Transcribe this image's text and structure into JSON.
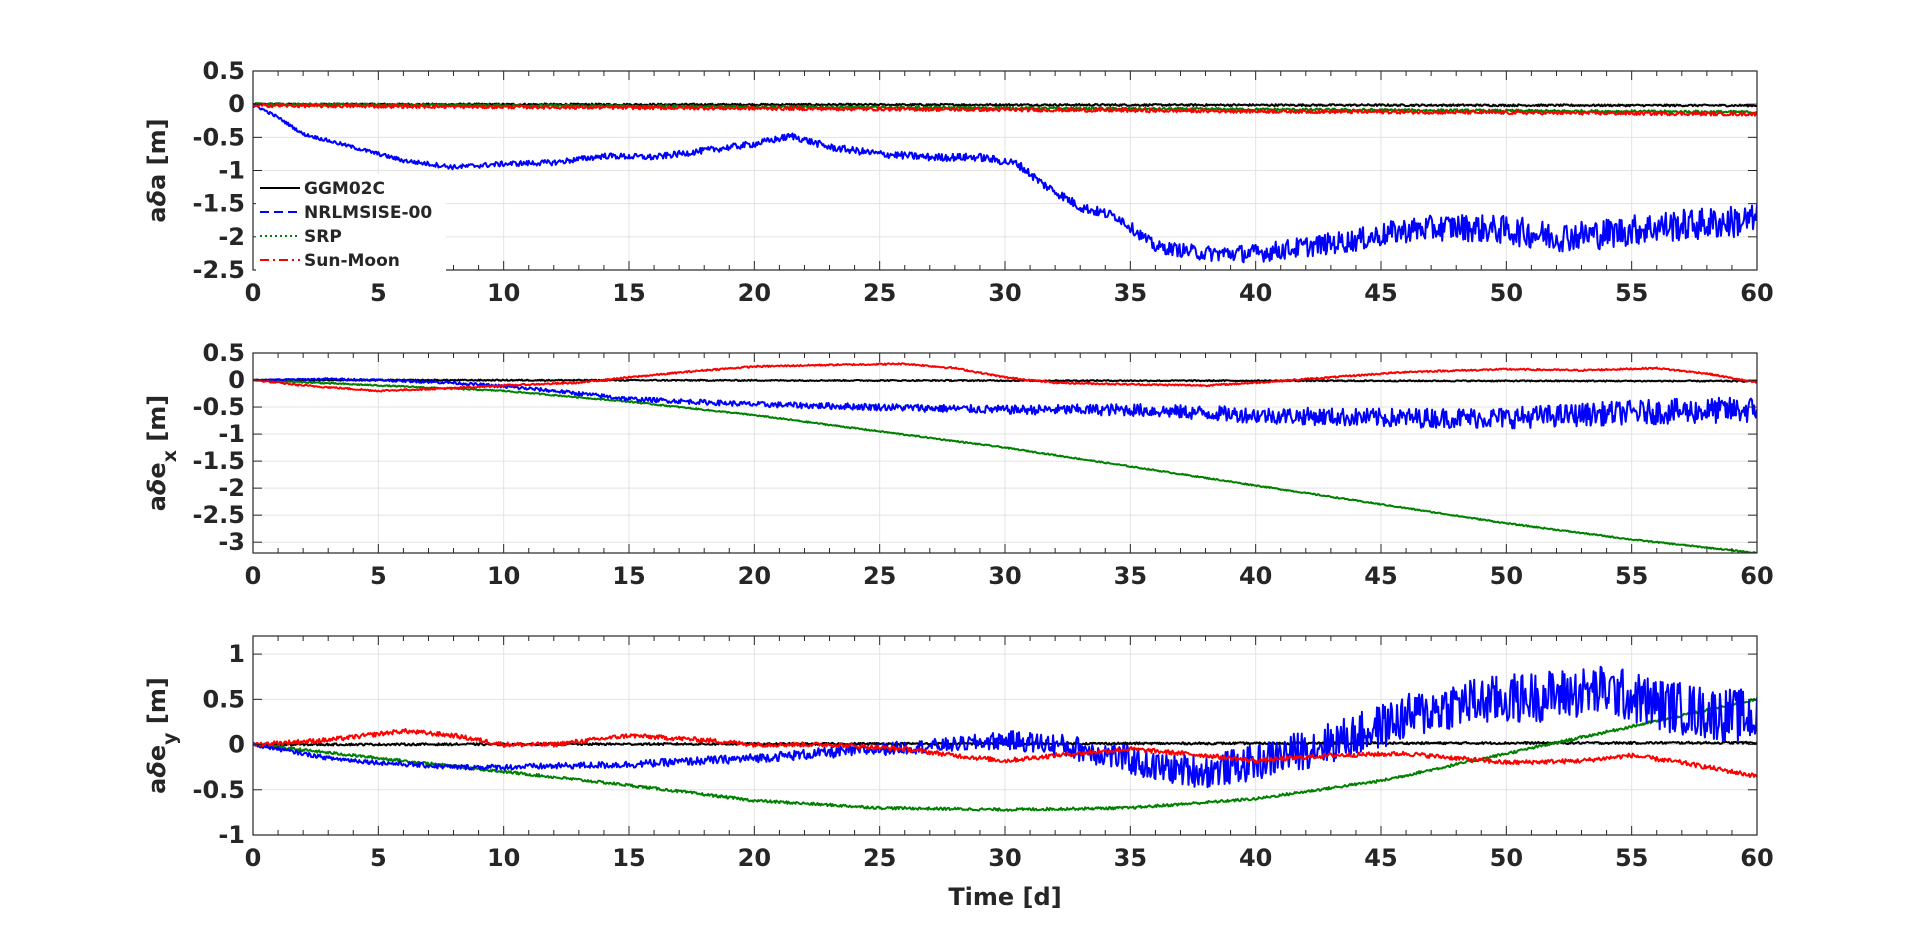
{
  "chart_data": [
    {
      "type": "line",
      "ylabel_parts": [
        {
          "text": "a",
          "style": "normal"
        },
        {
          "text": "δ",
          "style": "italic"
        },
        {
          "text": "a",
          "style": "normal"
        },
        {
          "text": " [m]",
          "style": "normal"
        }
      ],
      "xlabel": "",
      "xlim": [
        0,
        60
      ],
      "ylim": [
        -2.5,
        0.5
      ],
      "xticks": [
        0,
        5,
        10,
        15,
        20,
        25,
        30,
        35,
        40,
        45,
        50,
        55,
        60
      ],
      "yticks": [
        0.5,
        0,
        -0.5,
        -1,
        -1.5,
        -2,
        -2.5
      ],
      "ytick_labels": [
        "0.5",
        "0",
        "-0.5",
        "-1",
        "-1.5",
        "-2",
        "-2.5"
      ],
      "grid": true,
      "legend": {
        "placement": "bottom-left",
        "entries": [
          {
            "name": "GGM02C",
            "color": "#000000",
            "dash": "solid"
          },
          {
            "name": "NRLMSISE-00",
            "color": "#0000ff",
            "dash": "dashed"
          },
          {
            "name": "SRP",
            "color": "#008000",
            "dash": "dotted"
          },
          {
            "name": "Sun-Moon",
            "color": "#ff0000",
            "dash": "dashdot"
          }
        ]
      },
      "series": [
        {
          "color": "#000000",
          "noise": 0.015,
          "x": [
            0,
            60
          ],
          "y": [
            0,
            -0.02
          ]
        },
        {
          "color": "#008000",
          "noise": 0.02,
          "x": [
            0,
            60
          ],
          "y": [
            0,
            -0.12
          ]
        },
        {
          "color": "#0000ff",
          "x": [
            0,
            1,
            2,
            4,
            6,
            8,
            10,
            12,
            14,
            16,
            18,
            20,
            21.5,
            23,
            25,
            27,
            29,
            30.5,
            31.5,
            33,
            34.5,
            36,
            38,
            40,
            42,
            44,
            46,
            48,
            50,
            52,
            54,
            56,
            58,
            60
          ],
          "y": [
            0,
            -0.2,
            -0.45,
            -0.65,
            -0.85,
            -0.95,
            -0.9,
            -0.88,
            -0.78,
            -0.8,
            -0.7,
            -0.6,
            -0.48,
            -0.65,
            -0.75,
            -0.8,
            -0.8,
            -0.9,
            -1.2,
            -1.55,
            -1.7,
            -2.15,
            -2.25,
            -2.25,
            -2.15,
            -2.05,
            -1.9,
            -1.85,
            -1.9,
            -2.0,
            -1.95,
            -1.85,
            -1.8,
            -1.75
          ],
          "noise_x": [
            0,
            10,
            20,
            30,
            35,
            40,
            45,
            50,
            60
          ],
          "noise_y": [
            0.02,
            0.04,
            0.05,
            0.06,
            0.08,
            0.14,
            0.18,
            0.22,
            0.25
          ]
        },
        {
          "color": "#ff0000",
          "noise": 0.025,
          "x": [
            0,
            60
          ],
          "y": [
            -0.02,
            -0.15
          ]
        }
      ]
    },
    {
      "type": "line",
      "ylabel_parts": [
        {
          "text": "a",
          "style": "normal"
        },
        {
          "text": "δ",
          "style": "italic"
        },
        {
          "text": "e",
          "style": "normal"
        },
        {
          "text": "x",
          "style": "sub"
        },
        {
          "text": " [m]",
          "style": "normal"
        }
      ],
      "xlabel": "",
      "xlim": [
        0,
        60
      ],
      "ylim": [
        -3.2,
        0.5
      ],
      "xticks": [
        0,
        5,
        10,
        15,
        20,
        25,
        30,
        35,
        40,
        45,
        50,
        55,
        60
      ],
      "yticks": [
        0.5,
        0,
        -0.5,
        -1,
        -1.5,
        -2,
        -2.5,
        -3
      ],
      "ytick_labels": [
        "0.5",
        "0",
        "-0.5",
        "-1",
        "-1.5",
        "-2",
        "-2.5",
        "-3"
      ],
      "grid": true,
      "series": [
        {
          "color": "#000000",
          "noise": 0.012,
          "x": [
            0,
            60
          ],
          "y": [
            0,
            -0.02
          ]
        },
        {
          "color": "#008000",
          "noise": 0.012,
          "x": [
            0,
            5,
            10,
            15,
            20,
            25,
            30,
            35,
            40,
            45,
            50,
            55,
            60
          ],
          "y": [
            0,
            -0.1,
            -0.2,
            -0.4,
            -0.65,
            -0.95,
            -1.25,
            -1.6,
            -1.95,
            -2.3,
            -2.65,
            -2.95,
            -3.2
          ]
        },
        {
          "color": "#0000ff",
          "x": [
            0,
            3,
            5,
            8,
            10,
            12,
            15,
            20,
            25,
            30,
            35,
            40,
            45,
            50,
            55,
            60
          ],
          "y": [
            0,
            0.02,
            0.0,
            -0.05,
            -0.12,
            -0.2,
            -0.35,
            -0.45,
            -0.5,
            -0.55,
            -0.55,
            -0.65,
            -0.7,
            -0.7,
            -0.6,
            -0.55
          ],
          "noise_x": [
            0,
            10,
            20,
            30,
            40,
            50,
            60
          ],
          "noise_y": [
            0.01,
            0.03,
            0.05,
            0.08,
            0.15,
            0.2,
            0.25
          ]
        },
        {
          "color": "#ff0000",
          "noise": 0.015,
          "x": [
            0,
            2,
            5,
            8,
            10,
            13,
            15,
            18,
            20,
            23,
            26,
            28,
            30,
            32,
            35,
            38,
            40,
            43,
            46,
            50,
            53,
            56,
            58,
            60
          ],
          "y": [
            0,
            -0.1,
            -0.2,
            -0.15,
            -0.1,
            -0.05,
            0.05,
            0.18,
            0.25,
            0.28,
            0.3,
            0.22,
            0.05,
            -0.05,
            -0.08,
            -0.1,
            -0.05,
            0.05,
            0.15,
            0.2,
            0.18,
            0.22,
            0.12,
            -0.05
          ]
        }
      ]
    },
    {
      "type": "line",
      "ylabel_parts": [
        {
          "text": "a",
          "style": "normal"
        },
        {
          "text": "δ",
          "style": "italic"
        },
        {
          "text": "e",
          "style": "normal"
        },
        {
          "text": "y",
          "style": "sub"
        },
        {
          "text": " [m]",
          "style": "normal"
        }
      ],
      "xlabel": "Time [d]",
      "xlim": [
        0,
        60
      ],
      "ylim": [
        -1,
        1.2
      ],
      "xticks": [
        0,
        5,
        10,
        15,
        20,
        25,
        30,
        35,
        40,
        45,
        50,
        55,
        60
      ],
      "yticks": [
        1,
        0.5,
        0,
        -0.5,
        -1
      ],
      "ytick_labels": [
        "1",
        "0.5",
        "0",
        "-0.5",
        "-1"
      ],
      "grid": true,
      "series": [
        {
          "color": "#000000",
          "noise": 0.012,
          "x": [
            0,
            60
          ],
          "y": [
            0,
            0.02
          ]
        },
        {
          "color": "#008000",
          "noise": 0.015,
          "x": [
            0,
            5,
            10,
            15,
            20,
            25,
            30,
            35,
            40,
            45,
            50,
            55,
            60
          ],
          "y": [
            0,
            -0.15,
            -0.3,
            -0.45,
            -0.62,
            -0.7,
            -0.72,
            -0.7,
            -0.6,
            -0.4,
            -0.1,
            0.2,
            0.5
          ]
        },
        {
          "color": "#0000ff",
          "x": [
            0,
            3,
            5,
            8,
            10,
            15,
            20,
            25,
            28,
            30,
            32,
            34,
            36,
            38,
            40,
            42,
            44,
            46,
            48,
            50,
            52,
            54,
            56,
            58,
            60
          ],
          "y": [
            0,
            -0.15,
            -0.2,
            -0.25,
            -0.25,
            -0.22,
            -0.15,
            -0.05,
            0.0,
            0.05,
            0.0,
            -0.1,
            -0.25,
            -0.3,
            -0.2,
            -0.05,
            0.1,
            0.3,
            0.45,
            0.5,
            0.55,
            0.6,
            0.45,
            0.35,
            0.3
          ],
          "noise_x": [
            0,
            10,
            20,
            28,
            34,
            40,
            45,
            50,
            60
          ],
          "noise_y": [
            0.02,
            0.03,
            0.05,
            0.08,
            0.15,
            0.2,
            0.25,
            0.28,
            0.3
          ]
        },
        {
          "color": "#ff0000",
          "noise": 0.025,
          "x": [
            0,
            3,
            6,
            8,
            10,
            12,
            15,
            18,
            20,
            23,
            26,
            28,
            30,
            32,
            35,
            38,
            40,
            43,
            46,
            50,
            53,
            55,
            57,
            60
          ],
          "y": [
            0,
            0.05,
            0.15,
            0.1,
            0.0,
            0.0,
            0.1,
            0.05,
            0.0,
            0.0,
            -0.05,
            -0.12,
            -0.18,
            -0.12,
            -0.05,
            -0.12,
            -0.18,
            -0.12,
            -0.1,
            -0.2,
            -0.18,
            -0.12,
            -0.2,
            -0.35
          ]
        }
      ]
    }
  ]
}
